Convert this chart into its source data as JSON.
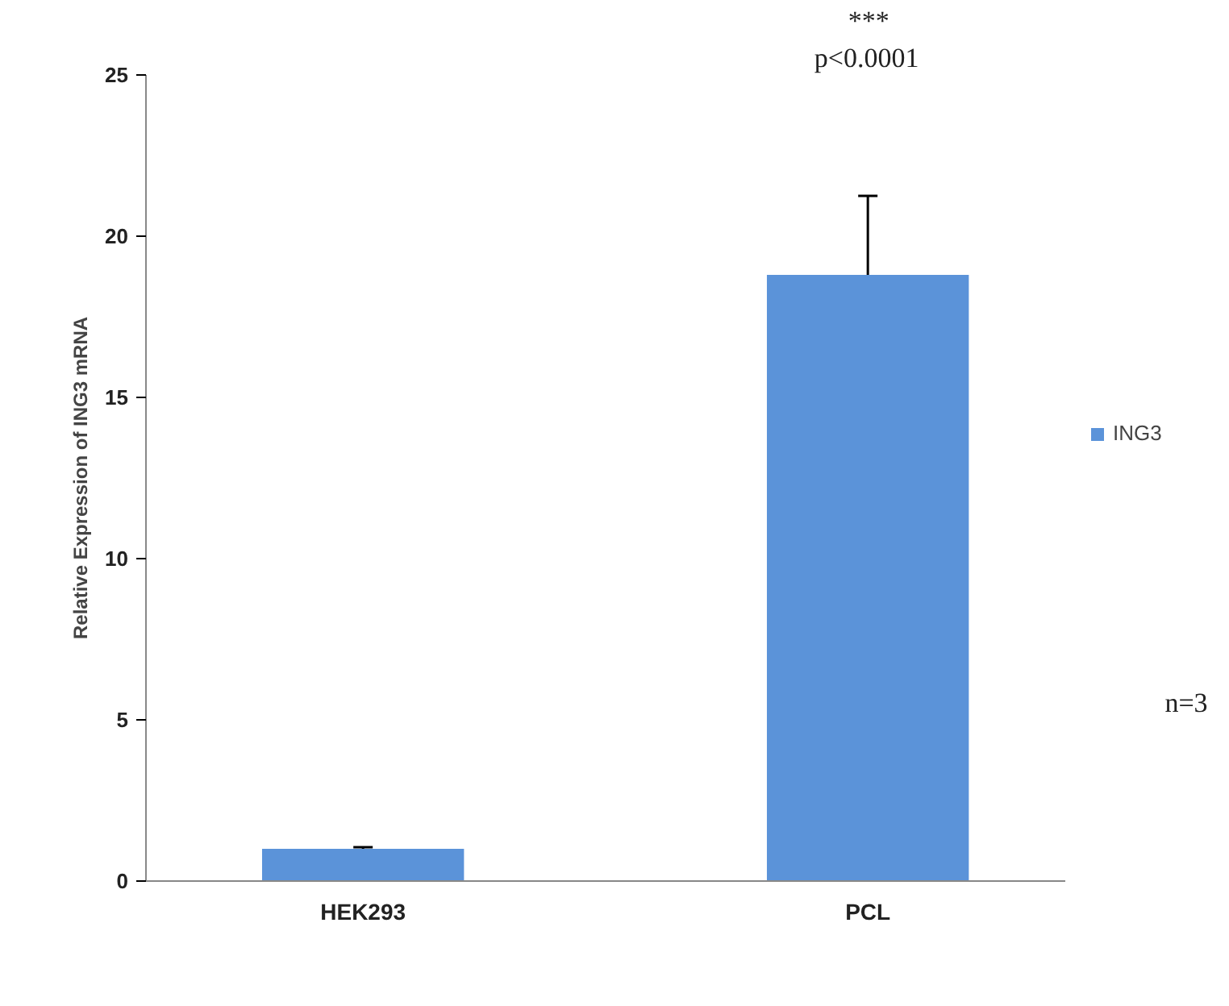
{
  "chart_data": {
    "type": "bar",
    "ylabel": "Relative Expression of ING3 mRNA",
    "categories": [
      "HEK293",
      "PCL"
    ],
    "series": [
      {
        "name": "ING3",
        "color": "#5b93d9",
        "values": [
          1.0,
          18.8
        ],
        "errors": [
          0.05,
          2.45
        ]
      }
    ],
    "ylim": [
      0,
      25
    ],
    "yticks": [
      0,
      5,
      10,
      15,
      20,
      25
    ],
    "grid": false,
    "legend": "right",
    "annotations": [
      "***",
      "p<0.0001",
      "n=3"
    ]
  }
}
